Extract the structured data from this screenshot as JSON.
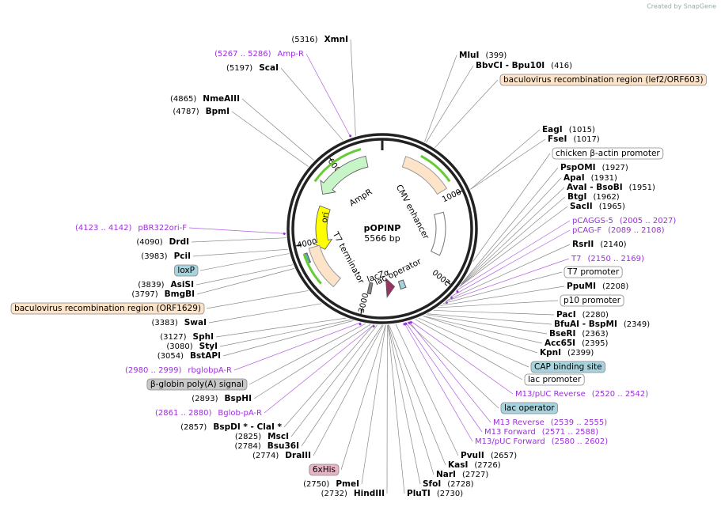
{
  "watermark": "Created by SnapGene",
  "map": {
    "name": "pOPINP",
    "length": "5566 bp",
    "ticks": [
      1000,
      2000,
      3000,
      4000,
      5000
    ]
  },
  "features": [
    {
      "label": "AmpR"
    },
    {
      "label": "ori"
    },
    {
      "label": "CMV enhancer"
    },
    {
      "label": "T7 terminator"
    },
    {
      "label": "lac operator"
    },
    {
      "label": "lacZα"
    }
  ],
  "right_labels": [
    {
      "name": "MluI",
      "position": "(399)",
      "kind": "site"
    },
    {
      "name": "BbvCI  - Bpu10I",
      "position": "(416)",
      "kind": "site"
    },
    {
      "name": "baculovirus recombination region (lef2/ORF603)",
      "kind": "feature",
      "color": "#fde3c8"
    },
    {
      "name": "EagI",
      "position": "(1015)",
      "kind": "site"
    },
    {
      "name": "FseI",
      "position": "(1017)",
      "kind": "site"
    },
    {
      "name": "chicken β-actin promoter",
      "kind": "feature",
      "color": "#ffffff"
    },
    {
      "name": "PspOMI",
      "position": "(1927)",
      "kind": "site"
    },
    {
      "name": "ApaI",
      "position": "(1931)",
      "kind": "site"
    },
    {
      "name": "AvaI  - BsoBI",
      "position": "(1951)",
      "kind": "site"
    },
    {
      "name": "BtgI",
      "position": "(1962)",
      "kind": "site"
    },
    {
      "name": "SacII",
      "position": "(1965)",
      "kind": "site"
    },
    {
      "name": "pCAGGS-5",
      "position": "(2005 .. 2027)",
      "kind": "primer"
    },
    {
      "name": "pCAG-F",
      "position": "(2089 .. 2108)",
      "kind": "primer"
    },
    {
      "name": "RsrII",
      "position": "(2140)",
      "kind": "site"
    },
    {
      "name": "T7",
      "position": "(2150 .. 2169)",
      "kind": "primer"
    },
    {
      "name": "T7 promoter",
      "kind": "feature",
      "color": "#ffffff"
    },
    {
      "name": "PpuMI",
      "position": "(2208)",
      "kind": "site"
    },
    {
      "name": "p10 promoter",
      "kind": "feature",
      "color": "#ffffff"
    },
    {
      "name": "PacI",
      "position": "(2280)",
      "kind": "site"
    },
    {
      "name": "BfuAI  - BspMI",
      "position": "(2349)",
      "kind": "site"
    },
    {
      "name": "BseRI",
      "position": "(2363)",
      "kind": "site"
    },
    {
      "name": "Acc65I",
      "position": "(2395)",
      "kind": "site"
    },
    {
      "name": "KpnI",
      "position": "(2399)",
      "kind": "site"
    },
    {
      "name": "CAP binding site",
      "kind": "feature",
      "color": "#a6d3de"
    },
    {
      "name": "lac promoter",
      "kind": "feature",
      "color": "#ffffff"
    },
    {
      "name": "M13/pUC Reverse",
      "position": "(2520 .. 2542)",
      "kind": "primer"
    },
    {
      "name": "lac operator",
      "kind": "feature",
      "color": "#a6d3de"
    },
    {
      "name": "M13 Reverse",
      "position": "(2539 .. 2555)",
      "kind": "primer"
    },
    {
      "name": "M13 Forward",
      "position": "(2571 .. 2588)",
      "kind": "primer"
    },
    {
      "name": "M13/pUC Forward",
      "position": "(2580 .. 2602)",
      "kind": "primer"
    },
    {
      "name": "PvuII",
      "position": "(2657)",
      "kind": "site"
    },
    {
      "name": "KasI",
      "position": "(2726)",
      "kind": "site"
    },
    {
      "name": "NarI",
      "position": "(2727)",
      "kind": "site"
    },
    {
      "name": "SfoI",
      "position": "(2728)",
      "kind": "site"
    },
    {
      "name": "PluTI",
      "position": "(2730)",
      "kind": "site"
    }
  ],
  "left_labels": [
    {
      "name": "XmnI",
      "position": "(5316)",
      "kind": "site"
    },
    {
      "name": "Amp-R",
      "position": "(5267 .. 5286)",
      "kind": "primer"
    },
    {
      "name": "ScaI",
      "position": "(5197)",
      "kind": "site"
    },
    {
      "name": "NmeAIII",
      "position": "(4865)",
      "kind": "site"
    },
    {
      "name": "BpmI",
      "position": "(4787)",
      "kind": "site"
    },
    {
      "name": "pBR322ori-F",
      "position": "(4123 .. 4142)",
      "kind": "primer"
    },
    {
      "name": "DrdI",
      "position": "(4090)",
      "kind": "site"
    },
    {
      "name": "PciI",
      "position": "(3983)",
      "kind": "site"
    },
    {
      "name": "loxP",
      "kind": "feature",
      "color": "#a6d3de"
    },
    {
      "name": "AsiSI",
      "position": "(3839)",
      "kind": "site"
    },
    {
      "name": "BmgBI",
      "position": "(3797)",
      "kind": "site"
    },
    {
      "name": "baculovirus recombination region (ORF1629)",
      "kind": "feature",
      "color": "#fde3c8"
    },
    {
      "name": "SwaI",
      "position": "(3383)",
      "kind": "site"
    },
    {
      "name": "SphI",
      "position": "(3127)",
      "kind": "site"
    },
    {
      "name": "StyI",
      "position": "(3080)",
      "kind": "site"
    },
    {
      "name": "BstAPI",
      "position": "(3054)",
      "kind": "site"
    },
    {
      "name": "rbglobpA-R",
      "position": "(2980 .. 2999)",
      "kind": "primer"
    },
    {
      "name": "β-globin poly(A) signal",
      "kind": "feature",
      "color": "#c8c8c8"
    },
    {
      "name": "BspHI",
      "position": "(2893)",
      "kind": "site"
    },
    {
      "name": "Bglob-pA-R",
      "position": "(2861 .. 2880)",
      "kind": "primer"
    },
    {
      "name": "BspDI *  - ClaI *",
      "position": "(2857)",
      "kind": "site"
    },
    {
      "name": "MscI",
      "position": "(2825)",
      "kind": "site"
    },
    {
      "name": "Bsu36I",
      "position": "(2784)",
      "kind": "site"
    },
    {
      "name": "DraIII",
      "position": "(2774)",
      "kind": "site"
    },
    {
      "name": "6xHis",
      "kind": "feature",
      "color": "#e8b4c4"
    },
    {
      "name": "PmeI",
      "position": "(2750)",
      "kind": "site"
    },
    {
      "name": "HindIII",
      "position": "(2732)",
      "kind": "site"
    }
  ]
}
